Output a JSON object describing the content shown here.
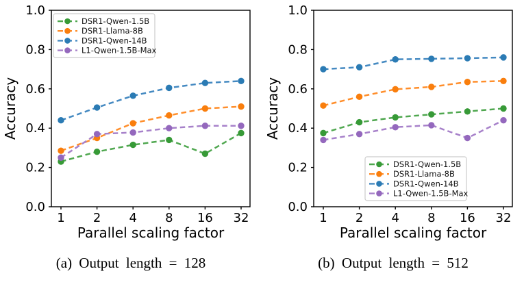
{
  "figure": {
    "background": "#ffffff"
  },
  "chart_data": [
    {
      "type": "line",
      "caption": "(a) Output length = 128",
      "xlabel": "Parallel scaling factor",
      "ylabel": "Accuracy",
      "x": [
        1,
        2,
        4,
        8,
        16,
        32
      ],
      "x_scale": "log2",
      "xticklabels": [
        "1",
        "2",
        "4",
        "8",
        "16",
        "32"
      ],
      "ylim": [
        0.0,
        1.0
      ],
      "yticks": [
        0.0,
        0.2,
        0.4,
        0.6,
        0.8,
        1.0
      ],
      "yticklabels": [
        "0.0",
        "0.2",
        "0.4",
        "0.6",
        "0.8",
        "1.0"
      ],
      "grid": false,
      "legend_position": "upper-left",
      "series": [
        {
          "name": "DSR1-Qwen-1.5B",
          "color": "#4fa74f",
          "marker_color": "#379a37",
          "values": [
            0.23,
            0.28,
            0.315,
            0.34,
            0.27,
            0.375
          ]
        },
        {
          "name": "DSR1-Llama-8B",
          "color": "#ff8e2b",
          "marker_color": "#f97e0d",
          "values": [
            0.285,
            0.35,
            0.425,
            0.465,
            0.5,
            0.51
          ]
        },
        {
          "name": "DSR1-Qwen-14B",
          "color": "#4489c1",
          "marker_color": "#2b7bb4",
          "values": [
            0.44,
            0.505,
            0.565,
            0.605,
            0.63,
            0.64
          ]
        },
        {
          "name": "L1-Qwen-1.5B-Max",
          "color": "#a781ca",
          "marker_color": "#9468bd",
          "values": [
            0.25,
            0.37,
            0.378,
            0.4,
            0.412,
            0.412
          ]
        }
      ]
    },
    {
      "type": "line",
      "caption": "(b) Output length = 512",
      "xlabel": "Parallel scaling factor",
      "ylabel": "Accuracy",
      "x": [
        1,
        2,
        4,
        8,
        16,
        32
      ],
      "x_scale": "log2",
      "xticklabels": [
        "1",
        "2",
        "4",
        "8",
        "16",
        "32"
      ],
      "ylim": [
        0.0,
        1.0
      ],
      "yticks": [
        0.0,
        0.2,
        0.4,
        0.6,
        0.8,
        1.0
      ],
      "yticklabels": [
        "0.0",
        "0.2",
        "0.4",
        "0.6",
        "0.8",
        "1.0"
      ],
      "grid": false,
      "legend_position": "lower-center",
      "series": [
        {
          "name": "DSR1-Qwen-1.5B",
          "color": "#4fa74f",
          "marker_color": "#379a37",
          "values": [
            0.375,
            0.43,
            0.455,
            0.47,
            0.485,
            0.5
          ]
        },
        {
          "name": "DSR1-Llama-8B",
          "color": "#ff8e2b",
          "marker_color": "#f97e0d",
          "values": [
            0.515,
            0.56,
            0.598,
            0.61,
            0.635,
            0.64
          ]
        },
        {
          "name": "DSR1-Qwen-14B",
          "color": "#4489c1",
          "marker_color": "#2b7bb4",
          "values": [
            0.7,
            0.71,
            0.75,
            0.753,
            0.756,
            0.76
          ]
        },
        {
          "name": "L1-Qwen-1.5B-Max",
          "color": "#a781ca",
          "marker_color": "#9468bd",
          "values": [
            0.34,
            0.37,
            0.405,
            0.415,
            0.35,
            0.44
          ]
        }
      ]
    }
  ],
  "style": {
    "axis_color": "#000000",
    "tick_font_size": 18,
    "label_font_size": 20,
    "legend_font_size": 11.5,
    "legend_border_color": "#cccccc",
    "legend_bg": "#ffffff"
  }
}
